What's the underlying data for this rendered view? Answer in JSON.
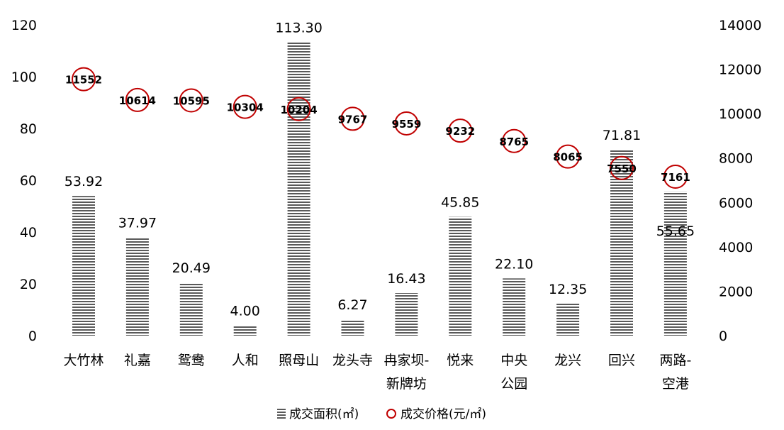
{
  "chart_data": {
    "type": "bar",
    "categories": [
      [
        "大竹林"
      ],
      [
        "礼嘉"
      ],
      [
        "鸳鸯"
      ],
      [
        "人和"
      ],
      [
        "照母山"
      ],
      [
        "龙头寺"
      ],
      [
        "冉家坝-",
        "新牌坊"
      ],
      [
        "悦来"
      ],
      [
        "中央",
        "公园"
      ],
      [
        "龙兴"
      ],
      [
        "回兴"
      ],
      [
        "两路-",
        "空港"
      ]
    ],
    "series": [
      {
        "name": "成交面积(㎡)",
        "type": "bar",
        "axis": "left",
        "values": [
          53.92,
          37.97,
          20.49,
          4.0,
          113.3,
          6.27,
          16.43,
          45.85,
          22.1,
          12.35,
          71.81,
          55.65
        ],
        "labels": [
          "53.92",
          "37.97",
          "20.49",
          "4.00",
          "113.30",
          "6.27",
          "16.43",
          "45.85",
          "22.10",
          "12.35",
          "71.81",
          "55.65"
        ]
      },
      {
        "name": "成交价格(元/㎡)",
        "type": "scatter",
        "axis": "right",
        "values": [
          11552,
          10614,
          10595,
          10304,
          10204,
          9767,
          9559,
          9232,
          8765,
          8065,
          7550,
          7161
        ],
        "labels": [
          "11552",
          "10614",
          "10595",
          "10304",
          "10204",
          "9767",
          "9559",
          "9232",
          "8765",
          "8065",
          "7550",
          "7161"
        ]
      }
    ],
    "y_left": {
      "ylim": [
        0,
        120
      ],
      "ticks": [
        "0",
        "20",
        "40",
        "60",
        "80",
        "100",
        "120"
      ]
    },
    "y_right": {
      "ylim": [
        0,
        14000
      ],
      "ticks": [
        "0",
        "2000",
        "4000",
        "6000",
        "8000",
        "10000",
        "12000",
        "14000"
      ]
    },
    "grid": false,
    "legend_position": "bottom",
    "colors": {
      "bar_stripe": "#595959",
      "marker_stroke": "#c00000",
      "text": "#000000"
    }
  }
}
